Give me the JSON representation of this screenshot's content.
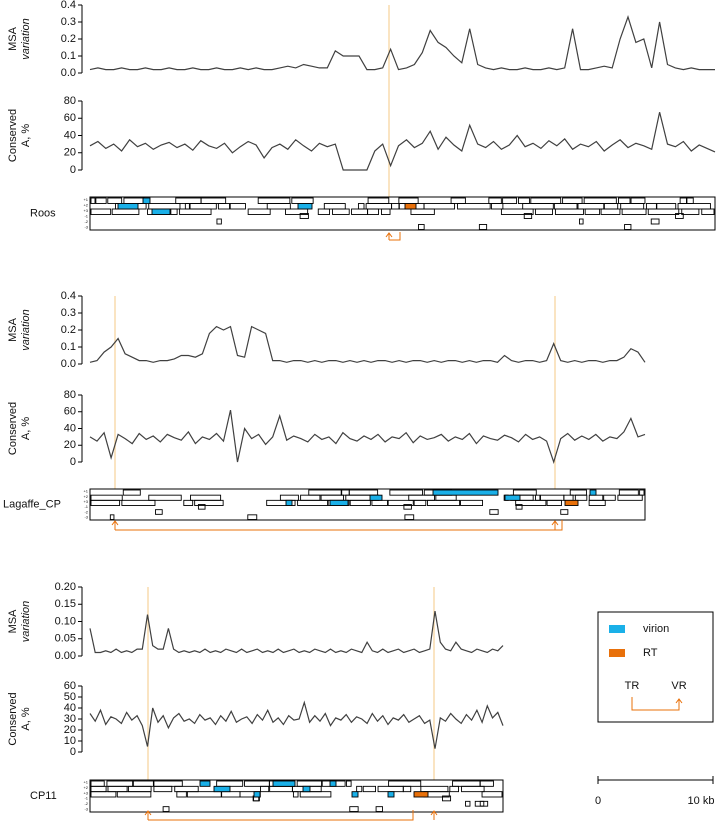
{
  "chart_data": [
    {
      "type": "line",
      "ylabel": [
        "MSA",
        "variation"
      ],
      "color": "#404040",
      "ylim": [
        0,
        0.4
      ],
      "yticks": [
        {
          "value": 0,
          "label": "0.0"
        },
        0.1,
        0.2,
        0.3,
        0.4
      ],
      "values": [
        0.02,
        0.03,
        0.02,
        0.02,
        0.03,
        0.02,
        0.02,
        0.03,
        0.02,
        0.02,
        0.03,
        0.02,
        0.02,
        0.03,
        0.02,
        0.02,
        0.03,
        0.02,
        0.02,
        0.03,
        0.02,
        0.03,
        0.02,
        0.02,
        0.03,
        0.04,
        0.03,
        0.05,
        0.04,
        0.03,
        0.03,
        0.13,
        0.1,
        0.1,
        0.1,
        0.02,
        0.02,
        0.03,
        0.14,
        0.02,
        0.03,
        0.05,
        0.12,
        0.25,
        0.18,
        0.15,
        0.1,
        0.06,
        0.26,
        0.05,
        0.03,
        0.02,
        0.03,
        0.02,
        0.02,
        0.03,
        0.02,
        0.02,
        0.03,
        0.02,
        0.03,
        0.26,
        0.02,
        0.02,
        0.03,
        0.04,
        0.03,
        0.2,
        0.33,
        0.18,
        0.2,
        0.03,
        0.3,
        0.05,
        0.03,
        0.02,
        0.03,
        0.02,
        0.02,
        0.02
      ]
    },
    {
      "type": "line",
      "ylabel": [
        "Conserved",
        "A, %"
      ],
      "color": "#404040",
      "ylim": [
        0,
        80
      ],
      "yticks": [
        0,
        20,
        40,
        60,
        80
      ],
      "values": [
        28,
        33,
        25,
        30,
        22,
        35,
        27,
        31,
        24,
        29,
        32,
        26,
        30,
        23,
        34,
        28,
        25,
        31,
        20,
        27,
        33,
        29,
        14,
        26,
        30,
        24,
        35,
        28,
        22,
        31,
        27,
        30,
        0,
        0,
        0,
        0,
        22,
        30,
        5,
        28,
        35,
        26,
        31,
        45,
        24,
        38,
        29,
        22,
        52,
        30,
        26,
        33,
        24,
        29,
        40,
        27,
        31,
        25,
        34,
        28,
        36,
        24,
        30,
        27,
        33,
        22,
        29,
        35,
        26,
        31,
        28,
        24,
        67,
        30,
        27,
        33,
        22,
        29,
        25,
        21
      ]
    },
    {
      "type": "line",
      "ylabel": [
        "MSA",
        "variation"
      ],
      "color": "#404040",
      "ylim": [
        0,
        0.4
      ],
      "yticks": [
        {
          "value": 0,
          "label": "0.0"
        },
        0.1,
        0.2,
        0.3,
        0.4
      ],
      "values": [
        0.01,
        0.02,
        0.07,
        0.1,
        0.15,
        0.06,
        0.04,
        0.02,
        0.02,
        0.01,
        0.02,
        0.02,
        0.03,
        0.05,
        0.05,
        0.04,
        0.06,
        0.18,
        0.22,
        0.2,
        0.22,
        0.05,
        0.04,
        0.22,
        0.2,
        0.18,
        0.02,
        0.02,
        0.01,
        0.02,
        0.02,
        0.01,
        0.02,
        0.01,
        0.02,
        0.02,
        0.01,
        0.02,
        0.01,
        0.02,
        0.01,
        0.02,
        0.02,
        0.01,
        0.02,
        0.01,
        0.02,
        0.02,
        0.01,
        0.02,
        0.01,
        0.02,
        0.02,
        0.01,
        0.02,
        0.01,
        0.02,
        0.02,
        0.01,
        0.05,
        0.02,
        0.01,
        0.02,
        0.02,
        0.01,
        0.02,
        0.12,
        0.02,
        0.01,
        0.02,
        0.01,
        0.02,
        0.02,
        0.01,
        0.02,
        0.02,
        0.04,
        0.09,
        0.07,
        0.01
      ]
    },
    {
      "type": "line",
      "ylabel": [
        "Conserved",
        "A, %"
      ],
      "color": "#404040",
      "ylim": [
        0,
        80
      ],
      "yticks": [
        0,
        20,
        40,
        60,
        80
      ],
      "values": [
        30,
        25,
        35,
        5,
        33,
        28,
        22,
        34,
        27,
        31,
        24,
        33,
        29,
        26,
        36,
        22,
        30,
        27,
        34,
        25,
        62,
        0,
        40,
        28,
        33,
        21,
        30,
        55,
        26,
        31,
        28,
        24,
        33,
        27,
        30,
        22,
        35,
        28,
        25,
        31,
        27,
        33,
        24,
        30,
        28,
        35,
        23,
        31,
        27,
        29,
        33,
        25,
        30,
        27,
        34,
        22,
        31,
        28,
        26,
        32,
        29,
        24,
        33,
        27,
        30,
        25,
        0,
        28,
        34,
        26,
        31,
        27,
        33,
        25,
        30,
        28,
        36,
        52,
        30,
        33
      ]
    },
    {
      "type": "line",
      "ylabel": [
        "MSA",
        "variation"
      ],
      "color": "#404040",
      "ylim": [
        0,
        0.2
      ],
      "yticks": [
        {
          "value": 0,
          "label": "0.00"
        },
        0.05,
        {
          "value": 0.1,
          "label": "0.10"
        },
        0.15,
        {
          "value": 0.2,
          "label": "0.20"
        }
      ],
      "values": [
        0.08,
        0.01,
        0.01,
        0.015,
        0.01,
        0.02,
        0.01,
        0.015,
        0.01,
        0.02,
        0.02,
        0.12,
        0.03,
        0.02,
        0.02,
        0.08,
        0.02,
        0.01,
        0.015,
        0.01,
        0.015,
        0.01,
        0.02,
        0.01,
        0.015,
        0.01,
        0.02,
        0.015,
        0.01,
        0.02,
        0.01,
        0.015,
        0.02,
        0.01,
        0.015,
        0.01,
        0.02,
        0.01,
        0.015,
        0.02,
        0.01,
        0.015,
        0.01,
        0.02,
        0.015,
        0.01,
        0.02,
        0.01,
        0.015,
        0.01,
        0.02,
        0.015,
        0.01,
        0.04,
        0.015,
        0.01,
        0.02,
        0.01,
        0.015,
        0.02,
        0.01,
        0.015,
        0.02,
        0.01,
        0.015,
        0.02,
        0.13,
        0.04,
        0.02,
        0.015,
        0.04,
        0.02,
        0.015,
        0.01,
        0.02,
        0.015,
        0.01,
        0.02,
        0.015,
        0.03
      ]
    },
    {
      "type": "line",
      "ylabel": [
        "Conserved",
        "A, %"
      ],
      "color": "#404040",
      "ylim": [
        0,
        60
      ],
      "yticks": [
        0,
        10,
        20,
        30,
        40,
        50,
        60
      ],
      "values": [
        35,
        28,
        38,
        25,
        32,
        30,
        26,
        36,
        29,
        33,
        24,
        5,
        40,
        27,
        33,
        22,
        31,
        35,
        28,
        30,
        26,
        34,
        29,
        31,
        25,
        33,
        28,
        37,
        27,
        30,
        32,
        26,
        34,
        29,
        38,
        27,
        31,
        25,
        33,
        29,
        30,
        45,
        27,
        33,
        28,
        35,
        24,
        31,
        29,
        34,
        27,
        32,
        30,
        26,
        35,
        28,
        33,
        25,
        31,
        29,
        34,
        27,
        30,
        33,
        26,
        29,
        3,
        31,
        28,
        35,
        30,
        26,
        34,
        29,
        38,
        27,
        42,
        31,
        36,
        24
      ]
    }
  ],
  "maps": [
    {
      "label": "Roos"
    },
    {
      "label": "Lagaffe_CP"
    },
    {
      "label": "CP11"
    }
  ],
  "frame_labels": [
    "+1",
    "+2",
    "+3",
    "-1",
    "-2",
    "-3"
  ],
  "legend": {
    "items": [
      {
        "name": "virion",
        "color": "#1ab0e8"
      },
      {
        "name": "RT",
        "color": "#e8700a"
      }
    ],
    "tr": "TR",
    "vr": "VR"
  },
  "scale_bar": {
    "ticks": [
      0,
      {
        "value": 10,
        "label": "10 kb"
      }
    ]
  }
}
